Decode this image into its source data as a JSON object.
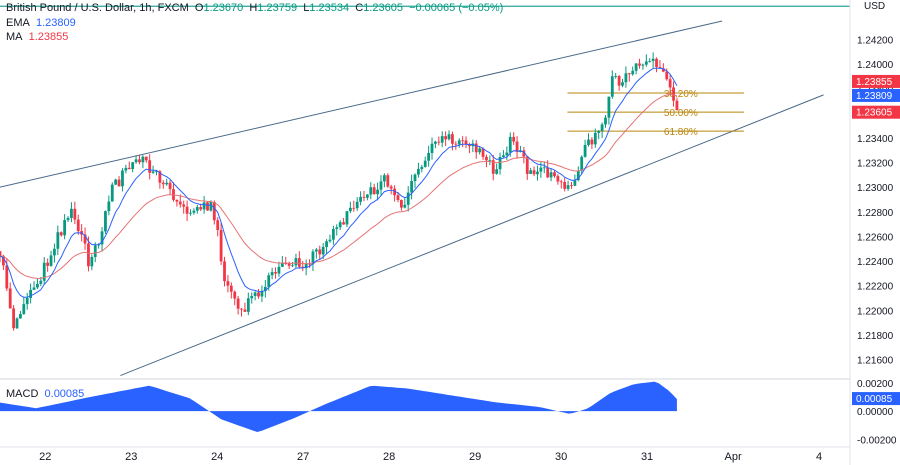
{
  "header": {
    "symbol": "British Pound / U.S. Dollar, 1h, FXCM",
    "open_label": "O",
    "open": "1.23670",
    "high_label": "H",
    "high": "1.23759",
    "low_label": "L",
    "low": "1.23534",
    "close_label": "C",
    "close": "1.23605",
    "change": "−0.00065 (−0.05%)"
  },
  "indicators": {
    "ema_label": "EMA",
    "ema_value": "1.23809",
    "ma_label": "MA",
    "ma_value": "1.23855",
    "macd_label": "MACD",
    "macd_value": "0.00085"
  },
  "colors": {
    "up": "#089981",
    "down": "#f23645",
    "ema": "#2962ff",
    "ma": "#e57373",
    "channel": "#4a6a8a",
    "fib": "#b8860b",
    "macd": "#2962ff",
    "usd_line": "#26a69a"
  },
  "chart_data": {
    "type": "candlestick",
    "currency_label": "USD",
    "ylim": [
      1.2145,
      1.2448
    ],
    "y_ticks": [
      "1.24200",
      "1.24000",
      "1.23800",
      "1.23600",
      "1.23400",
      "1.23200",
      "1.23000",
      "1.22800",
      "1.22600",
      "1.22400",
      "1.22200",
      "1.22000",
      "1.21800",
      "1.21600"
    ],
    "x_ticks": [
      {
        "label": "22",
        "pos": 0.05
      },
      {
        "label": "23",
        "pos": 0.145
      },
      {
        "label": "24",
        "pos": 0.24
      },
      {
        "label": "27",
        "pos": 0.335
      },
      {
        "label": "28",
        "pos": 0.43
      },
      {
        "label": "29",
        "pos": 0.525
      },
      {
        "label": "30",
        "pos": 0.62
      },
      {
        "label": "31",
        "pos": 0.715
      },
      {
        "label": "Apr",
        "pos": 0.81
      },
      {
        "label": "4",
        "pos": 0.905
      }
    ],
    "anchors": [
      {
        "t": 0.0,
        "p": 1.2248
      },
      {
        "t": 0.015,
        "p": 1.219
      },
      {
        "t": 0.04,
        "p": 1.222
      },
      {
        "t": 0.08,
        "p": 1.2285
      },
      {
        "t": 0.1,
        "p": 1.2235
      },
      {
        "t": 0.125,
        "p": 1.23
      },
      {
        "t": 0.155,
        "p": 1.2325
      },
      {
        "t": 0.185,
        "p": 1.23
      },
      {
        "t": 0.21,
        "p": 1.228
      },
      {
        "t": 0.235,
        "p": 1.2285
      },
      {
        "t": 0.25,
        "p": 1.222
      },
      {
        "t": 0.265,
        "p": 1.2198
      },
      {
        "t": 0.29,
        "p": 1.222
      },
      {
        "t": 0.315,
        "p": 1.2238
      },
      {
        "t": 0.34,
        "p": 1.2238
      },
      {
        "t": 0.37,
        "p": 1.2265
      },
      {
        "t": 0.4,
        "p": 1.229
      },
      {
        "t": 0.425,
        "p": 1.2305
      },
      {
        "t": 0.445,
        "p": 1.2285
      },
      {
        "t": 0.465,
        "p": 1.232
      },
      {
        "t": 0.49,
        "p": 1.2342
      },
      {
        "t": 0.52,
        "p": 1.2335
      },
      {
        "t": 0.545,
        "p": 1.2315
      },
      {
        "t": 0.565,
        "p": 1.2338
      },
      {
        "t": 0.585,
        "p": 1.2312
      },
      {
        "t": 0.61,
        "p": 1.2312
      },
      {
        "t": 0.625,
        "p": 1.23
      },
      {
        "t": 0.635,
        "p": 1.2305
      },
      {
        "t": 0.645,
        "p": 1.233
      },
      {
        "t": 0.665,
        "p": 1.2345
      },
      {
        "t": 0.675,
        "p": 1.2385
      },
      {
        "t": 0.69,
        "p": 1.2388
      },
      {
        "t": 0.705,
        "p": 1.2398
      },
      {
        "t": 0.715,
        "p": 1.2402
      },
      {
        "t": 0.73,
        "p": 1.2398
      },
      {
        "t": 0.74,
        "p": 1.2382
      },
      {
        "t": 0.748,
        "p": 1.236
      }
    ],
    "ema": {
      "label": "EMA",
      "value": 1.23809
    },
    "ma": {
      "label": "MA",
      "value": 1.23855
    },
    "price_labels": [
      {
        "value": 1.23855,
        "text": "1.23855",
        "color": "#f23645"
      },
      {
        "value": 1.23809,
        "text": "1.23809",
        "color": "#2962ff"
      },
      {
        "value": 1.23605,
        "text": "1.23605",
        "color": "#f23645"
      }
    ],
    "channel": {
      "upper": [
        {
          "t": 0.0,
          "p": 1.23
        },
        {
          "t": 0.798,
          "p": 1.2435
        }
      ],
      "lower": [
        {
          "t": 0.133,
          "p": 1.2147
        },
        {
          "t": 0.91,
          "p": 1.2375
        }
      ]
    },
    "fibonacci": [
      {
        "label": "38.20%",
        "value": 1.23765
      },
      {
        "label": "50.00%",
        "value": 1.2361
      },
      {
        "label": "61.80%",
        "value": 1.23455
      }
    ],
    "fib_range_t": [
      0.627,
      0.822
    ],
    "usd_line_value": 1.2447,
    "macd": {
      "label": "MACD",
      "value": 0.00085,
      "value_text": "0.00085",
      "ylim": [
        -0.0024,
        0.0022
      ],
      "y_ticks": [
        "0.00200",
        "0.00000",
        "-0.00200"
      ],
      "anchors": [
        {
          "t": 0.0,
          "v": 0.0006
        },
        {
          "t": 0.04,
          "v": 0.0002
        },
        {
          "t": 0.1,
          "v": 0.001
        },
        {
          "t": 0.165,
          "v": 0.0018
        },
        {
          "t": 0.21,
          "v": 0.0009
        },
        {
          "t": 0.245,
          "v": -0.0006
        },
        {
          "t": 0.285,
          "v": -0.0015
        },
        {
          "t": 0.325,
          "v": -0.0005
        },
        {
          "t": 0.36,
          "v": 0.0005
        },
        {
          "t": 0.41,
          "v": 0.0018
        },
        {
          "t": 0.45,
          "v": 0.0016
        },
        {
          "t": 0.5,
          "v": 0.0011
        },
        {
          "t": 0.55,
          "v": 0.0006
        },
        {
          "t": 0.595,
          "v": 0.0003
        },
        {
          "t": 0.63,
          "v": -0.0002
        },
        {
          "t": 0.65,
          "v": 0.0002
        },
        {
          "t": 0.675,
          "v": 0.0013
        },
        {
          "t": 0.7,
          "v": 0.0019
        },
        {
          "t": 0.725,
          "v": 0.0021
        },
        {
          "t": 0.74,
          "v": 0.0014
        },
        {
          "t": 0.748,
          "v": 0.00085
        }
      ]
    }
  }
}
